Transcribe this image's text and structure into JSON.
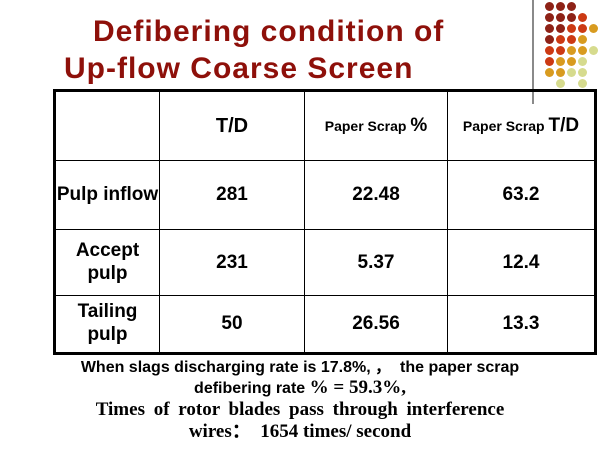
{
  "slide": {
    "title_line1": "Defibering condition of",
    "title_line2": "Up-flow Coarse Screen",
    "title_color": "#8E100A"
  },
  "decoration": {
    "dot_colors": {
      "d": "#8E2217",
      "r": "#CC3A14",
      "o": "#D89B20",
      "y": "#D6DB8E"
    },
    "dot_rows": [
      "ddd..",
      "dddr.",
      "ddrro",
      "drro.",
      "rrooy",
      "rooy.",
      "ooyy.",
      ".y.y."
    ],
    "gray_line_color": "#8a8a8a"
  },
  "table": {
    "headers": [
      {
        "prefix": "",
        "big": ""
      },
      {
        "prefix": "",
        "big": "T/D"
      },
      {
        "prefix": "Paper Scrap ",
        "suffix": "%"
      },
      {
        "prefix": "Paper Scrap ",
        "suffix": "T/D"
      }
    ],
    "rows": [
      {
        "label": "Pulp inflow",
        "td": "281",
        "scrap_pct": "22.48",
        "scrap_td": "63.2"
      },
      {
        "label": "Accept pulp",
        "td": "231",
        "scrap_pct": "5.37",
        "scrap_td": "12.4"
      },
      {
        "label": "Tailing pulp",
        "td": "50",
        "scrap_pct": "26.56",
        "scrap_td": "13.3"
      }
    ]
  },
  "footnote": {
    "line1": "When slags discharging rate is 17.8%, ，  the paper scrap",
    "line2_sans": "defibering rate ",
    "line2_serif": "% = 59.3%,",
    "line3": "Times of rotor blades pass through interference",
    "line4": "wires：  1654 times/ second"
  }
}
